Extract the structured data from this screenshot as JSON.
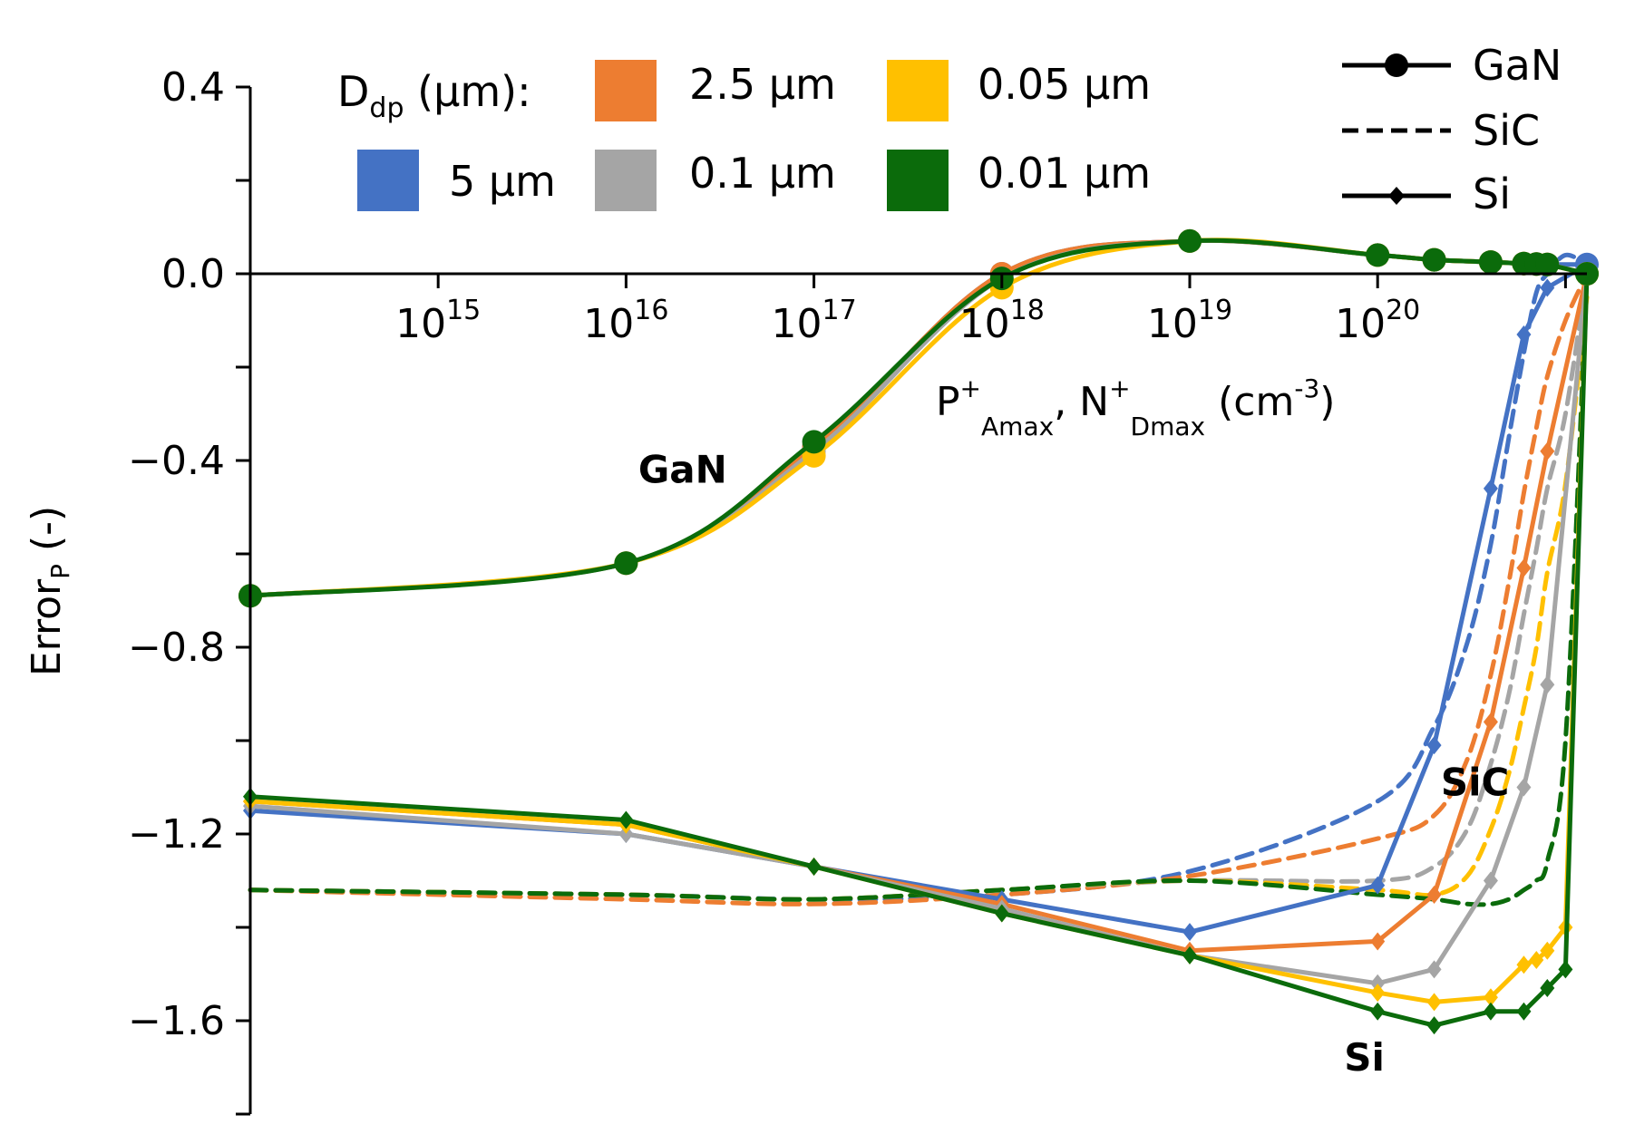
{
  "chart_data": {
    "type": "line",
    "title": "",
    "xlabel": {
      "base1": "P",
      "sup1": "+",
      "sub1": "Amax",
      "mid": ", N",
      "sup2": "+",
      "sub2": "Dmax",
      "unit_pre": " (cm",
      "unit_sup": "-3",
      "unit_post": ")"
    },
    "ylabel": {
      "base": "Error",
      "sub": "P",
      "post": " (-)"
    },
    "xscale": "log",
    "xlim": [
      100000000000000.0,
      1.3e+21
    ],
    "ylim": [
      -1.8,
      0.4
    ],
    "x_axis_position": "y=0",
    "y_ticks": [
      {
        "value": 0.4,
        "label": "0.4"
      },
      {
        "value": 0.0,
        "label": "0.0"
      },
      {
        "value": -0.4,
        "label": "−0.4"
      },
      {
        "value": -0.8,
        "label": "−0.8"
      },
      {
        "value": -1.2,
        "label": "−1.2"
      },
      {
        "value": -1.6,
        "label": "−1.6"
      }
    ],
    "y_minor_ticks": [
      0.2,
      -0.2,
      -0.6,
      -1.0,
      -1.4,
      -1.8
    ],
    "x_ticks": [
      {
        "value": 1000000000000000.0,
        "base": "10",
        "exp": "15"
      },
      {
        "value": 1e+16,
        "base": "10",
        "exp": "16"
      },
      {
        "value": 1e+17,
        "base": "10",
        "exp": "17"
      },
      {
        "value": 1e+18,
        "base": "10",
        "exp": "18"
      },
      {
        "value": 1e+19,
        "base": "10",
        "exp": "19"
      },
      {
        "value": 1e+20,
        "base": "10",
        "exp": "20"
      }
    ],
    "legend_dp": {
      "title_base": "D",
      "title_sub": "dp",
      "title_post": " (µm):",
      "entries": [
        {
          "label": "5 µm",
          "color": "#4472C4"
        },
        {
          "label": "2.5 µm",
          "color": "#ED7D31"
        },
        {
          "label": "0.1 µm",
          "color": "#A5A5A5"
        },
        {
          "label": "0.05 µm",
          "color": "#FFC000"
        },
        {
          "label": "0.01 µm",
          "color": "#0B6B0B"
        }
      ],
      "placement": "top-center"
    },
    "legend_material": {
      "entries": [
        {
          "label": "GaN",
          "style": "solid",
          "marker": "circle"
        },
        {
          "label": "SiC",
          "style": "dashed",
          "marker": "none"
        },
        {
          "label": "Si",
          "style": "solid",
          "marker": "diamond"
        }
      ],
      "placement": "top-right"
    },
    "annotations": [
      {
        "text": "GaN",
        "x": 2e+16,
        "y": -0.42
      },
      {
        "text": "SiC",
        "x": 3.3e+20,
        "y": -1.09
      },
      {
        "text": "Si",
        "x": 8.5e+19,
        "y": -1.68
      }
    ],
    "series": [
      {
        "name": "GaN 5 µm",
        "material": "GaN",
        "color": "#4472C4",
        "style": "solid",
        "marker": "circle",
        "x": [
          100000000000000.0,
          1e+16,
          1e+17,
          1e+18,
          1e+19,
          1e+20,
          2e+20,
          4e+20,
          6e+20,
          7e+20,
          8e+20,
          1.3e+21
        ],
        "y": [
          -0.69,
          -0.62,
          -0.37,
          0.0,
          0.07,
          0.04,
          0.03,
          0.025,
          0.022,
          0.021,
          0.02,
          0.02
        ]
      },
      {
        "name": "GaN 2.5 µm",
        "material": "GaN",
        "color": "#ED7D31",
        "style": "solid",
        "marker": "circle",
        "x": [
          100000000000000.0,
          1e+16,
          1e+17,
          1e+18,
          1e+19,
          1e+20,
          2e+20,
          4e+20,
          6e+20,
          7e+20,
          8e+20,
          1.3e+21
        ],
        "y": [
          -0.69,
          -0.62,
          -0.37,
          0.0,
          0.07,
          0.04,
          0.03,
          0.025,
          0.022,
          0.021,
          0.02,
          0.0
        ]
      },
      {
        "name": "GaN 0.1 µm",
        "material": "GaN",
        "color": "#A5A5A5",
        "style": "solid",
        "marker": "circle",
        "x": [
          100000000000000.0,
          1e+16,
          1e+17,
          1e+18,
          1e+19,
          1e+20,
          2e+20,
          4e+20,
          6e+20,
          7e+20,
          8e+20,
          1.3e+21
        ],
        "y": [
          -0.69,
          -0.62,
          -0.38,
          -0.01,
          0.07,
          0.04,
          0.03,
          0.025,
          0.022,
          0.021,
          0.02,
          0.0
        ]
      },
      {
        "name": "GaN 0.05 µm",
        "material": "GaN",
        "color": "#FFC000",
        "style": "solid",
        "marker": "circle",
        "x": [
          100000000000000.0,
          1e+16,
          1e+17,
          1e+18,
          1e+19,
          1e+20,
          2e+20,
          4e+20,
          6e+20,
          7e+20,
          8e+20,
          1.3e+21
        ],
        "y": [
          -0.69,
          -0.62,
          -0.39,
          -0.03,
          0.07,
          0.04,
          0.03,
          0.025,
          0.022,
          0.021,
          0.02,
          0.0
        ]
      },
      {
        "name": "GaN 0.01 µm",
        "material": "GaN",
        "color": "#0B6B0B",
        "style": "solid",
        "marker": "circle",
        "x": [
          100000000000000.0,
          1e+16,
          1e+17,
          1e+18,
          1e+19,
          1e+20,
          2e+20,
          4e+20,
          6e+20,
          7e+20,
          8e+20,
          1.3e+21
        ],
        "y": [
          -0.69,
          -0.62,
          -0.36,
          -0.01,
          0.07,
          0.04,
          0.03,
          0.025,
          0.022,
          0.021,
          0.02,
          0.0
        ]
      },
      {
        "name": "SiC 5 µm",
        "material": "SiC",
        "color": "#4472C4",
        "style": "dashed",
        "marker": "none",
        "x": [
          100000000000000.0,
          1e+16,
          1e+17,
          1e+18,
          1e+19,
          1e+20,
          2e+20,
          3e+20,
          4e+20,
          5e+20,
          6e+20,
          7e+20,
          8e+20,
          1e+21,
          1.3e+21
        ],
        "y": [
          -1.32,
          -1.33,
          -1.34,
          -1.33,
          -1.28,
          -1.13,
          -0.97,
          -0.79,
          -0.58,
          -0.35,
          -0.17,
          -0.04,
          0.0,
          0.04,
          0.02
        ]
      },
      {
        "name": "SiC 2.5 µm",
        "material": "SiC",
        "color": "#ED7D31",
        "style": "dashed",
        "marker": "none",
        "x": [
          100000000000000.0,
          1e+16,
          1e+17,
          1e+18,
          1e+19,
          1e+20,
          2e+20,
          3e+20,
          4e+20,
          5e+20,
          6e+20,
          7e+20,
          8e+20,
          1e+21,
          1.3e+21
        ],
        "y": [
          -1.32,
          -1.34,
          -1.35,
          -1.33,
          -1.29,
          -1.21,
          -1.16,
          -1.04,
          -0.86,
          -0.66,
          -0.47,
          -0.33,
          -0.22,
          -0.1,
          0.0
        ]
      },
      {
        "name": "SiC 0.1 µm",
        "material": "SiC",
        "color": "#A5A5A5",
        "style": "dashed",
        "marker": "none",
        "x": [
          100000000000000.0,
          1e+16,
          1e+17,
          1e+18,
          1e+19,
          1e+20,
          2e+20,
          3e+20,
          4e+20,
          5e+20,
          6e+20,
          7e+20,
          8e+20,
          1e+21,
          1.3e+21
        ],
        "y": [
          -1.32,
          -1.33,
          -1.34,
          -1.32,
          -1.3,
          -1.3,
          -1.27,
          -1.19,
          -1.05,
          -0.9,
          -0.73,
          -0.59,
          -0.46,
          -0.3,
          0.0
        ]
      },
      {
        "name": "SiC 0.05 µm",
        "material": "SiC",
        "color": "#FFC000",
        "style": "dashed",
        "marker": "none",
        "x": [
          100000000000000.0,
          1e+16,
          1e+17,
          1e+18,
          1e+19,
          1e+20,
          2e+20,
          3e+20,
          4e+20,
          5e+20,
          6e+20,
          7e+20,
          8e+20,
          1e+21,
          1.3e+21
        ],
        "y": [
          -1.32,
          -1.33,
          -1.34,
          -1.32,
          -1.3,
          -1.32,
          -1.33,
          -1.29,
          -1.19,
          -1.07,
          -0.93,
          -0.8,
          -0.64,
          -0.45,
          -0.05
        ]
      },
      {
        "name": "SiC 0.01 µm",
        "material": "SiC",
        "color": "#0B6B0B",
        "style": "dashed",
        "marker": "none",
        "x": [
          100000000000000.0,
          1e+16,
          1e+17,
          1e+18,
          1e+19,
          1e+20,
          2e+20,
          3e+20,
          4e+20,
          5e+20,
          6e+20,
          7e+20,
          8e+20,
          1e+21,
          1.3e+21
        ],
        "y": [
          -1.32,
          -1.33,
          -1.34,
          -1.32,
          -1.3,
          -1.33,
          -1.34,
          -1.35,
          -1.35,
          -1.34,
          -1.32,
          -1.3,
          -1.26,
          -1.0,
          0.0
        ]
      },
      {
        "name": "Si 5 µm",
        "material": "Si",
        "color": "#4472C4",
        "style": "solid",
        "marker": "diamond",
        "x": [
          100000000000000.0,
          1e+16,
          1e+17,
          1e+18,
          1e+19,
          1e+20,
          2e+20,
          4e+20,
          6e+20,
          8e+20,
          1.3e+21
        ],
        "y": [
          -1.15,
          -1.2,
          -1.27,
          -1.34,
          -1.41,
          -1.31,
          -1.01,
          -0.46,
          -0.13,
          -0.03,
          0.02
        ]
      },
      {
        "name": "Si 2.5 µm",
        "material": "Si",
        "color": "#ED7D31",
        "style": "solid",
        "marker": "diamond",
        "x": [
          100000000000000.0,
          1e+16,
          1e+17,
          1e+18,
          1e+19,
          1e+20,
          2e+20,
          4e+20,
          6e+20,
          8e+20,
          1.3e+21
        ],
        "y": [
          -1.13,
          -1.18,
          -1.27,
          -1.35,
          -1.45,
          -1.43,
          -1.33,
          -0.96,
          -0.63,
          -0.38,
          0.0
        ]
      },
      {
        "name": "Si 0.1 µm",
        "material": "Si",
        "color": "#A5A5A5",
        "style": "solid",
        "marker": "diamond",
        "x": [
          100000000000000.0,
          1e+16,
          1e+17,
          1e+18,
          1e+19,
          1e+20,
          2e+20,
          4e+20,
          6e+20,
          8e+20,
          1.3e+21
        ],
        "y": [
          -1.14,
          -1.2,
          -1.27,
          -1.36,
          -1.46,
          -1.52,
          -1.49,
          -1.3,
          -1.1,
          -0.88,
          0.0
        ]
      },
      {
        "name": "Si 0.05 µm",
        "material": "Si",
        "color": "#FFC000",
        "style": "solid",
        "marker": "diamond",
        "x": [
          100000000000000.0,
          1e+16,
          1e+17,
          1e+18,
          1e+19,
          1e+20,
          2e+20,
          4e+20,
          6e+20,
          7e+20,
          8e+20,
          1e+21,
          1.3e+21
        ],
        "y": [
          -1.13,
          -1.18,
          -1.27,
          -1.37,
          -1.46,
          -1.54,
          -1.56,
          -1.55,
          -1.48,
          -1.47,
          -1.45,
          -1.4,
          0.0
        ]
      },
      {
        "name": "Si 0.01 µm",
        "material": "Si",
        "color": "#0B6B0B",
        "style": "solid",
        "marker": "diamond",
        "x": [
          100000000000000.0,
          1e+16,
          1e+17,
          1e+18,
          1e+19,
          1e+20,
          2e+20,
          4e+20,
          6e+20,
          8e+20,
          1e+21,
          1.3e+21
        ],
        "y": [
          -1.12,
          -1.17,
          -1.27,
          -1.37,
          -1.46,
          -1.58,
          -1.61,
          -1.58,
          -1.58,
          -1.53,
          -1.49,
          0.0
        ]
      }
    ]
  }
}
